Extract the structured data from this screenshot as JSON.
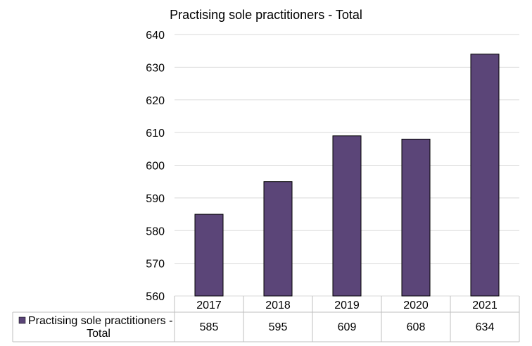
{
  "chart_data": {
    "type": "bar",
    "title": "Practising sole practitioners - Total",
    "categories": [
      "2017",
      "2018",
      "2019",
      "2020",
      "2021"
    ],
    "series": [
      {
        "name": "Practising sole practitioners - Total",
        "values": [
          585,
          595,
          609,
          608,
          634
        ]
      }
    ],
    "ylim": [
      560,
      640
    ],
    "yticks": [
      560,
      570,
      580,
      590,
      600,
      610,
      620,
      630,
      640
    ],
    "grid": true,
    "legend": "data-table",
    "colors": {
      "bar": "#5b4578",
      "grid": "#d9d9d9"
    }
  }
}
